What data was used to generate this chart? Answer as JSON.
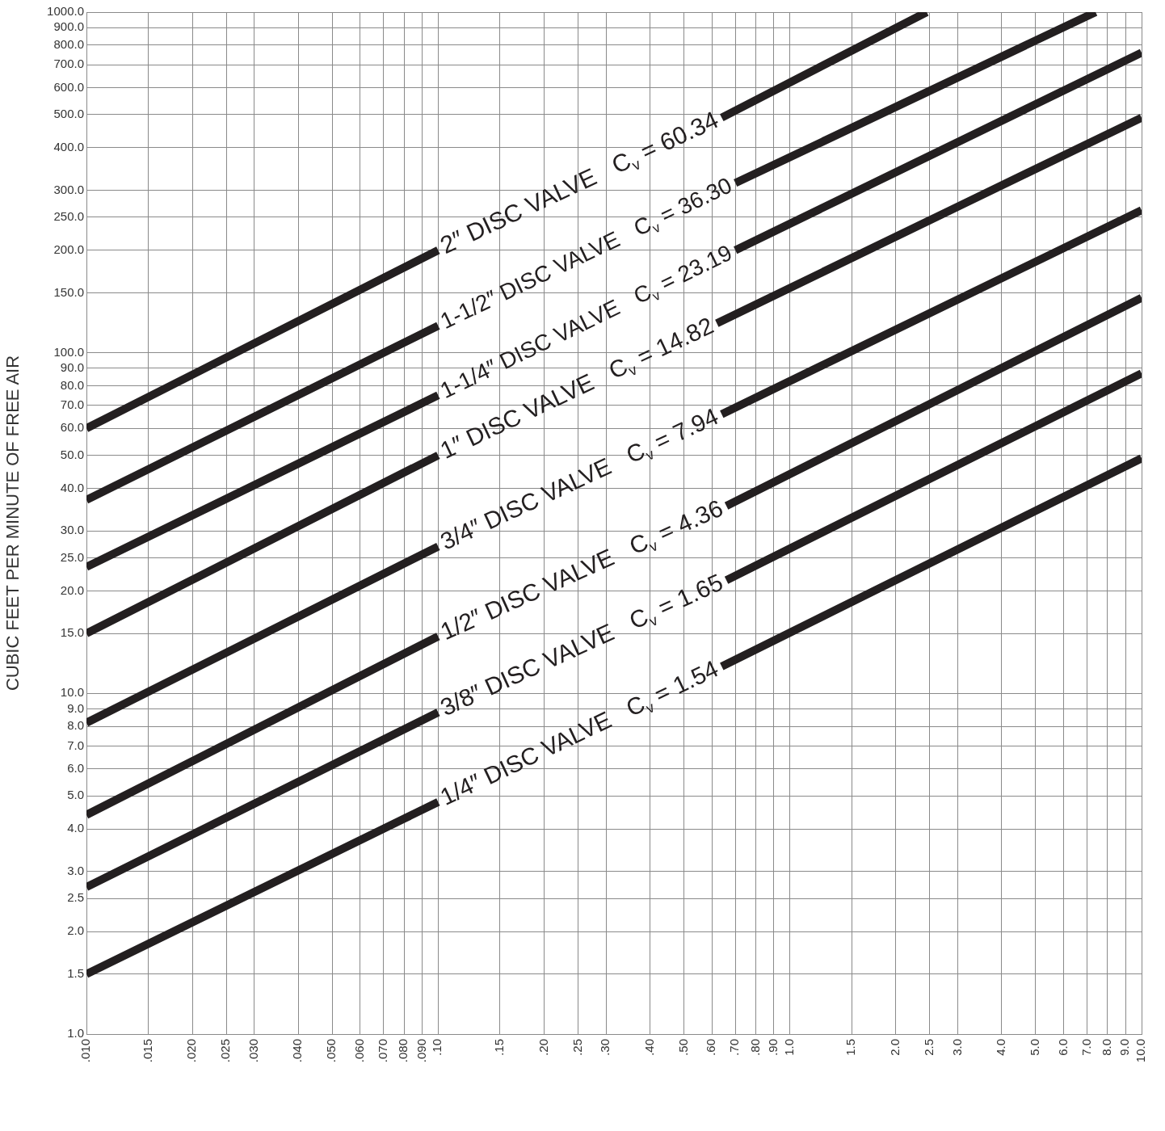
{
  "chart_data": {
    "type": "line",
    "ylabel": "CUBIC FEET PER MINUTE OF FREE AIR",
    "log": "xy",
    "grid": true,
    "legend": false,
    "marker": "none",
    "line_style": "solid",
    "xlim": [
      0.01,
      10
    ],
    "ylim": [
      1,
      1000
    ],
    "xticks": [
      {
        "value": 0.01,
        "label": ".010"
      },
      {
        "value": 0.015,
        "label": ".015"
      },
      {
        "value": 0.02,
        "label": ".020"
      },
      {
        "value": 0.025,
        "label": ".025"
      },
      {
        "value": 0.03,
        "label": ".030"
      },
      {
        "value": 0.04,
        "label": ".040"
      },
      {
        "value": 0.05,
        "label": ".050"
      },
      {
        "value": 0.06,
        "label": ".060"
      },
      {
        "value": 0.07,
        "label": ".070"
      },
      {
        "value": 0.08,
        "label": ".080"
      },
      {
        "value": 0.09,
        "label": ".090"
      },
      {
        "value": 0.1,
        "label": ".10"
      },
      {
        "value": 0.15,
        "label": ".15"
      },
      {
        "value": 0.2,
        "label": ".20"
      },
      {
        "value": 0.25,
        "label": ".25"
      },
      {
        "value": 0.3,
        "label": ".30"
      },
      {
        "value": 0.4,
        "label": ".40"
      },
      {
        "value": 0.5,
        "label": ".50"
      },
      {
        "value": 0.6,
        "label": ".60"
      },
      {
        "value": 0.7,
        "label": ".70"
      },
      {
        "value": 0.8,
        "label": ".80"
      },
      {
        "value": 0.9,
        "label": ".90"
      },
      {
        "value": 1,
        "label": "1.0"
      },
      {
        "value": 1.5,
        "label": "1.5"
      },
      {
        "value": 2,
        "label": "2.0"
      },
      {
        "value": 2.5,
        "label": "2.5"
      },
      {
        "value": 3,
        "label": "3.0"
      },
      {
        "value": 4,
        "label": "4.0"
      },
      {
        "value": 5,
        "label": "5.0"
      },
      {
        "value": 6,
        "label": "6.0"
      },
      {
        "value": 7,
        "label": "7.0"
      },
      {
        "value": 8,
        "label": "8.0"
      },
      {
        "value": 9,
        "label": "9.0"
      },
      {
        "value": 10,
        "label": "10.0"
      }
    ],
    "yticks": [
      {
        "value": 1,
        "label": "1.0"
      },
      {
        "value": 1.5,
        "label": "1.5"
      },
      {
        "value": 2,
        "label": "2.0"
      },
      {
        "value": 2.5,
        "label": "2.5"
      },
      {
        "value": 3,
        "label": "3.0"
      },
      {
        "value": 4,
        "label": "4.0"
      },
      {
        "value": 5,
        "label": "5.0"
      },
      {
        "value": 6,
        "label": "6.0"
      },
      {
        "value": 7,
        "label": "7.0"
      },
      {
        "value": 8,
        "label": "8.0"
      },
      {
        "value": 9,
        "label": "9.0"
      },
      {
        "value": 10,
        "label": "10.0"
      },
      {
        "value": 15,
        "label": "15.0"
      },
      {
        "value": 20,
        "label": "20.0"
      },
      {
        "value": 25,
        "label": "25.0"
      },
      {
        "value": 30,
        "label": "30.0"
      },
      {
        "value": 40,
        "label": "40.0"
      },
      {
        "value": 50,
        "label": "50.0"
      },
      {
        "value": 60,
        "label": "60.0"
      },
      {
        "value": 70,
        "label": "70.0"
      },
      {
        "value": 80,
        "label": "80.0"
      },
      {
        "value": 90,
        "label": "90.0"
      },
      {
        "value": 100,
        "label": "100.0"
      },
      {
        "value": 150,
        "label": "150.0"
      },
      {
        "value": 200,
        "label": "200.0"
      },
      {
        "value": 250,
        "label": "250.0"
      },
      {
        "value": 300,
        "label": "300.0"
      },
      {
        "value": 400,
        "label": "400.0"
      },
      {
        "value": 500,
        "label": "500.0"
      },
      {
        "value": 600,
        "label": "600.0"
      },
      {
        "value": 700,
        "label": "700.0"
      },
      {
        "value": 800,
        "label": "800.0"
      },
      {
        "value": 900,
        "label": "900.0"
      },
      {
        "value": 1000,
        "label": "1000.0"
      }
    ],
    "series": [
      {
        "name": "2″ DISC VALVE   C$_{v}$ = 60.34",
        "color": "#231f20",
        "x": [
          0.01,
          0.1,
          0.3,
          0.64,
          2.45
        ],
        "values": [
          60,
          200,
          null,
          490,
          1000
        ]
      },
      {
        "name": "1-1/2″ DISC VALVE   C$_{v}$ = 36.30",
        "color": "#231f20",
        "x": [
          0.01,
          0.1,
          0.3,
          0.7,
          7.4
        ],
        "values": [
          37,
          120,
          null,
          315,
          1000
        ]
      },
      {
        "name": "1-1/4″ DISC VALVE   C$_{v}$ = 23.19",
        "color": "#231f20",
        "x": [
          0.01,
          0.1,
          0.3,
          0.7,
          10
        ],
        "values": [
          23.5,
          75,
          null,
          200,
          760
        ]
      },
      {
        "name": "1″ DISC VALVE   C$_{v}$ = 14.82",
        "color": "#231f20",
        "x": [
          0.01,
          0.1,
          0.3,
          0.62,
          10
        ],
        "values": [
          15,
          50,
          null,
          122,
          490
        ]
      },
      {
        "name": "3/4″ DISC VALVE   C$_{v}$ = 7.94",
        "color": "#231f20",
        "x": [
          0.01,
          0.1,
          0.3,
          0.64,
          10
        ],
        "values": [
          8.2,
          27,
          null,
          66,
          262
        ]
      },
      {
        "name": "1/2″ DISC VALVE   C$_{v}$ = 4.36",
        "color": "#231f20",
        "x": [
          0.01,
          0.1,
          0.3,
          0.66,
          10
        ],
        "values": [
          4.4,
          14.7,
          null,
          35.5,
          145
        ]
      },
      {
        "name": "3/8″ DISC VALVE   C$_{v}$ = 1.65",
        "color": "#231f20",
        "x": [
          0.01,
          0.1,
          0.3,
          0.66,
          10
        ],
        "values": [
          2.7,
          8.8,
          null,
          21.5,
          87
        ]
      },
      {
        "name": "1/4″ DISC VALVE   C$_{v}$ = 1.54",
        "color": "#231f20",
        "x": [
          0.01,
          0.1,
          0.3,
          0.64,
          10
        ],
        "values": [
          1.5,
          4.8,
          null,
          12,
          49
        ]
      }
    ]
  }
}
